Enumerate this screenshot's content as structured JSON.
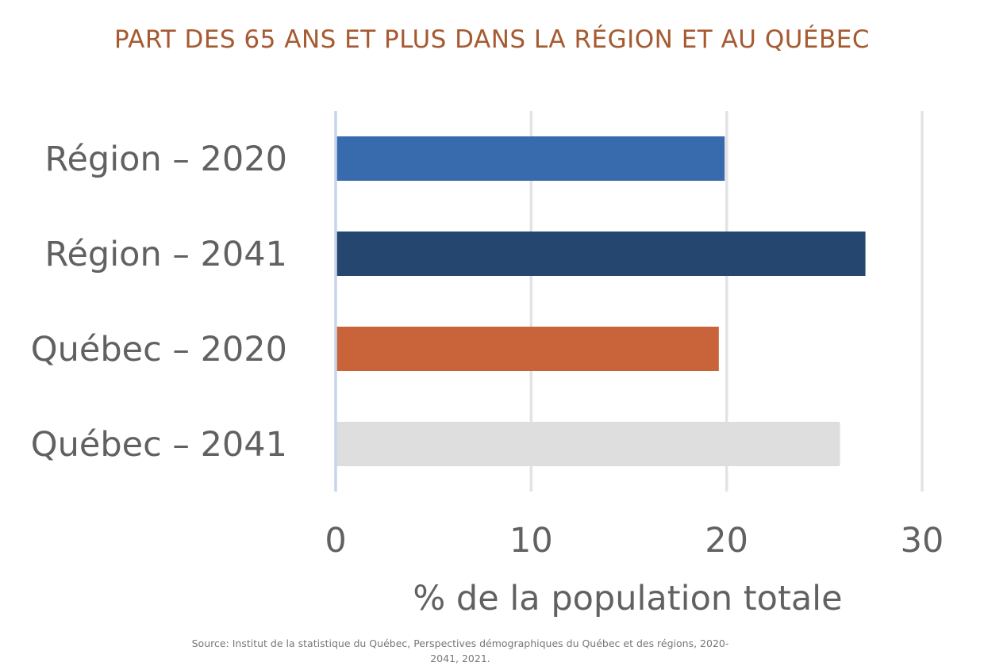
{
  "chart_data": {
    "type": "bar",
    "orientation": "horizontal",
    "title": "PART DES 65 ANS ET PLUS DANS LA RÉGION ET AU QUÉBEC",
    "categories": [
      "Région – 2020",
      "Région – 2041",
      "Québec – 2020",
      "Québec – 2041"
    ],
    "values": [
      19.9,
      27.1,
      19.6,
      25.8
    ],
    "colors": [
      "#376BAE",
      "#24466F",
      "#C9643A",
      "#DEDEDE"
    ],
    "xlabel": "% de la population totale",
    "ylabel": "",
    "xlim": [
      0,
      30
    ],
    "xticks": [
      0,
      10,
      20,
      30
    ],
    "grid": true,
    "legend": "none"
  },
  "source": "Source: Institut de la statistique du Québec, Perspectives démographiques du Québec et des régions, 2020-2041, 2021."
}
